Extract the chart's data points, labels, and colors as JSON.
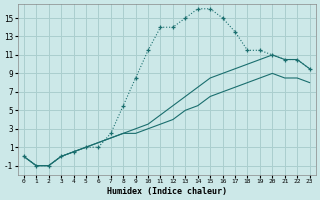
{
  "xlabel": "Humidex (Indice chaleur)",
  "background_color": "#cce8e8",
  "grid_color": "#aacece",
  "line_color": "#1a6e6e",
  "xlim": [
    -0.5,
    23.5
  ],
  "ylim": [
    -2,
    16.5
  ],
  "xticks": [
    0,
    1,
    2,
    3,
    4,
    5,
    6,
    7,
    8,
    9,
    10,
    11,
    12,
    13,
    14,
    15,
    16,
    17,
    18,
    19,
    20,
    21,
    22,
    23
  ],
  "yticks": [
    -1,
    1,
    3,
    5,
    7,
    9,
    11,
    13,
    15
  ],
  "line1_x": [
    0,
    1,
    2,
    3,
    4,
    5,
    6,
    7,
    8,
    9,
    10,
    11,
    12,
    13,
    14,
    15,
    16,
    17,
    18,
    19,
    20,
    21,
    22,
    23
  ],
  "line1_y": [
    0,
    -1,
    -1,
    0,
    0.5,
    1,
    1,
    2.5,
    5.5,
    8.5,
    11.5,
    14,
    14,
    15,
    16,
    16,
    15,
    13.5,
    11.5,
    11.5,
    11,
    10.5,
    10.5,
    9.5
  ],
  "line2_x": [
    0,
    1,
    2,
    3,
    4,
    5,
    6,
    7,
    8,
    9,
    10,
    11,
    12,
    13,
    14,
    15,
    16,
    17,
    18,
    19,
    20,
    21,
    22,
    23
  ],
  "line2_y": [
    0,
    -1,
    -1,
    0,
    0.5,
    1,
    1.5,
    2,
    2.5,
    3,
    3.5,
    4.5,
    5.5,
    6.5,
    7.5,
    8.5,
    9,
    9.5,
    10,
    10.5,
    11,
    10.5,
    10.5,
    9.5
  ],
  "line3_x": [
    0,
    1,
    2,
    3,
    4,
    5,
    6,
    7,
    8,
    9,
    10,
    11,
    12,
    13,
    14,
    15,
    16,
    17,
    18,
    19,
    20,
    21,
    22,
    23
  ],
  "line3_y": [
    0,
    -1,
    -1,
    0,
    0.5,
    1,
    1.5,
    2,
    2.5,
    2.5,
    3,
    3.5,
    4,
    5,
    5.5,
    6.5,
    7,
    7.5,
    8,
    8.5,
    9,
    8.5,
    8.5,
    8
  ]
}
